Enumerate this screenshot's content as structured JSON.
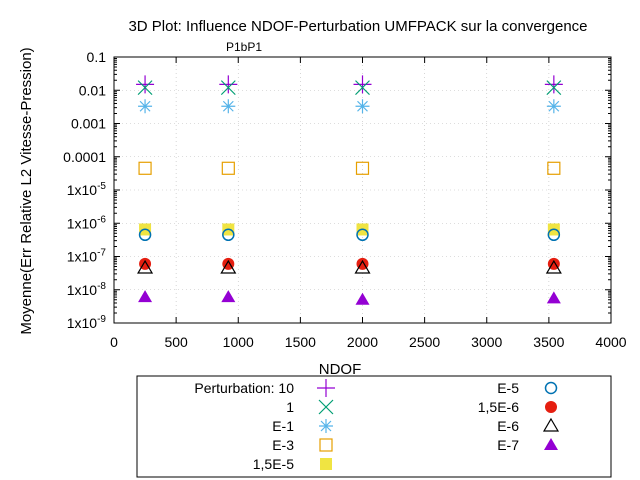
{
  "chart_data": {
    "type": "scatter",
    "title": "3D Plot: Influence NDOF-Perturbation UMFPACK sur la convergence",
    "subtitle": "P1bP1",
    "xlabel": "NDOF",
    "ylabel": "Moyenne(Err Relative L2 Vitesse-Pression)",
    "xlim": [
      0,
      4000
    ],
    "ylim": [
      1e-09,
      0.1
    ],
    "yscale": "log",
    "x_ticks": [
      "0",
      "500",
      "1000",
      "1500",
      "2000",
      "2500",
      "3000",
      "3500",
      "4000"
    ],
    "y_ticks": [
      "1x10-9",
      "1x10-8",
      "1x10-7",
      "1x10-6",
      "1x10-5",
      "0.0001",
      "0.001",
      "0.01",
      "0.1"
    ],
    "legend_placement": "below",
    "x": [
      250,
      920,
      2000,
      3540
    ],
    "series": [
      {
        "name": "Perturbation: 10",
        "marker": "plus",
        "color": "#9400d3",
        "values": [
          0.015,
          0.015,
          0.015,
          0.015
        ]
      },
      {
        "name": "1",
        "marker": "cross",
        "color": "#009e73",
        "values": [
          0.012,
          0.012,
          0.012,
          0.012
        ]
      },
      {
        "name": "E-1",
        "marker": "star",
        "color": "#56b4e9",
        "values": [
          0.0033,
          0.0033,
          0.0033,
          0.0033
        ]
      },
      {
        "name": "E-3",
        "marker": "open-square",
        "color": "#e69f00",
        "values": [
          4.5e-05,
          4.5e-05,
          4.5e-05,
          4.5e-05
        ]
      },
      {
        "name": "1,5E-5",
        "marker": "filled-square",
        "color": "#f0e442",
        "values": [
          6.5e-07,
          6.5e-07,
          6.5e-07,
          6.5e-07
        ]
      },
      {
        "name": "E-5",
        "marker": "open-circle",
        "color": "#0072b2",
        "values": [
          4.5e-07,
          4.5e-07,
          4.5e-07,
          4.5e-07
        ]
      },
      {
        "name": "1,5E-6",
        "marker": "filled-circle",
        "color": "#e51e10",
        "values": [
          6e-08,
          6e-08,
          6e-08,
          6e-08
        ]
      },
      {
        "name": "E-6",
        "marker": "open-triangle",
        "color": "#000000",
        "values": [
          4.5e-08,
          4.5e-08,
          4.5e-08,
          4.5e-08
        ]
      },
      {
        "name": "E-7",
        "marker": "filled-triangle",
        "color": "#9400d3",
        "values": [
          6e-09,
          6e-09,
          5e-09,
          5.5e-09
        ]
      }
    ]
  }
}
